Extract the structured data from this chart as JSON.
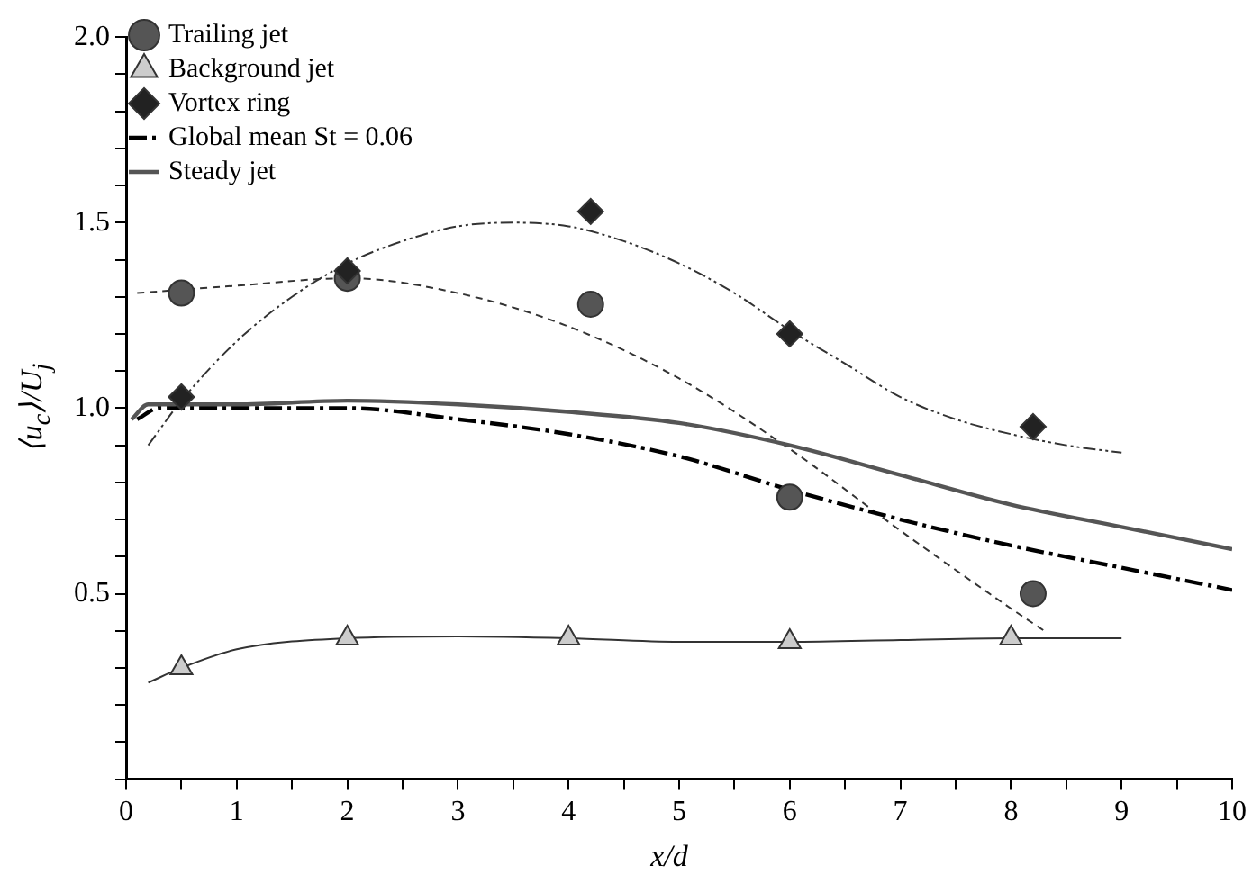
{
  "chart_data": {
    "type": "scatter",
    "xlabel": "x/d",
    "ylabel": "⟨u$_{c}$⟩/U$_{j}$",
    "xlim": [
      0,
      10
    ],
    "xticks": [
      0,
      {
        "value": 0.5,
        "label": null
      },
      1,
      {
        "value": 1.5,
        "label": null
      },
      2,
      {
        "value": 2.5,
        "label": null
      },
      3,
      {
        "value": 3.5,
        "label": null
      },
      4,
      {
        "value": 4.5,
        "label": null
      },
      5,
      {
        "value": 5.5,
        "label": null
      },
      6,
      {
        "value": 6.5,
        "label": null
      },
      7,
      {
        "value": 7.5,
        "label": null
      },
      8,
      {
        "value": 8.5,
        "label": null
      },
      9,
      {
        "value": 9.5,
        "label": null
      },
      10
    ],
    "ylim": [
      0,
      2
    ],
    "yticks": [
      {
        "value": 0,
        "label": null
      },
      {
        "value": 0.1,
        "label": null
      },
      {
        "value": 0.2,
        "label": null
      },
      {
        "value": 0.3,
        "label": null
      },
      {
        "value": 0.4,
        "label": null
      },
      0.5,
      {
        "value": 0.6,
        "label": null
      },
      {
        "value": 0.7,
        "label": null
      },
      {
        "value": 0.8,
        "label": null
      },
      {
        "value": 0.9,
        "label": null
      },
      {
        "value": 1,
        "label": "1.0"
      },
      {
        "value": 1.1,
        "label": null
      },
      {
        "value": 1.2,
        "label": null
      },
      {
        "value": 1.3,
        "label": null
      },
      {
        "value": 1.4,
        "label": null
      },
      1.5,
      {
        "value": 1.6,
        "label": null
      },
      {
        "value": 1.7,
        "label": null
      },
      {
        "value": 1.8,
        "label": null
      },
      {
        "value": 1.9,
        "label": null
      },
      {
        "value": 2,
        "label": "2.0"
      }
    ],
    "grid": false,
    "legend": "top left",
    "series": [
      {
        "type": "scatter",
        "name": "Trailing jet",
        "color": "#555555",
        "marker": "circle",
        "x": [
          0.5,
          2,
          4.2,
          6,
          8.2
        ],
        "values": [
          1.31,
          1.35,
          1.28,
          0.76,
          0.5
        ]
      },
      {
        "type": "scatter",
        "name": "Background jet",
        "color": "#cccccc",
        "marker": "triangle",
        "x": [
          0.5,
          2,
          4,
          6,
          8
        ],
        "values": [
          0.3,
          0.38,
          0.38,
          0.37,
          0.38
        ]
      },
      {
        "type": "scatter",
        "name": "Vortex ring",
        "color": "#222222",
        "marker": "diamond",
        "x": [
          0.5,
          2,
          4.2,
          6,
          8.2
        ],
        "values": [
          1.03,
          1.37,
          1.53,
          1.2,
          0.95
        ]
      },
      {
        "type": "line",
        "name": "Global mean St = 0.06",
        "color": "#000000",
        "line_style": "dashed",
        "marker": "none",
        "x": [
          0.1,
          0.3,
          1,
          2,
          3,
          4,
          5,
          6,
          7,
          8,
          9,
          10
        ],
        "values": [
          0.97,
          1.0,
          1.0,
          1.0,
          0.97,
          0.93,
          0.87,
          0.78,
          0.7,
          0.63,
          0.57,
          0.51
        ]
      },
      {
        "type": "line",
        "name": "Steady jet",
        "color": "#555555",
        "line_style": "solid",
        "marker": "none",
        "x": [
          0.05,
          0.2,
          1,
          2,
          3,
          4,
          5,
          6,
          7,
          8,
          9,
          10
        ],
        "values": [
          0.97,
          1.01,
          1.01,
          1.02,
          1.01,
          0.99,
          0.96,
          0.9,
          0.82,
          0.74,
          0.68,
          0.62
        ]
      },
      {
        "type": "line",
        "color": "#333333",
        "line_style": "dashed",
        "marker": "none",
        "x": [
          0.1,
          1,
          2,
          3,
          4,
          5,
          6,
          7,
          8,
          8.3
        ],
        "values": [
          1.31,
          1.33,
          1.35,
          1.31,
          1.22,
          1.08,
          0.89,
          0.67,
          0.46,
          0.4
        ]
      },
      {
        "type": "line",
        "color": "#333333",
        "line_style": "solid",
        "marker": "none",
        "x": [
          0.2,
          0.5,
          1,
          2,
          3,
          4,
          5,
          6,
          7,
          8,
          9
        ],
        "values": [
          0.26,
          0.3,
          0.35,
          0.38,
          0.385,
          0.38,
          0.37,
          0.37,
          0.375,
          0.38,
          0.38
        ]
      },
      {
        "type": "line",
        "color": "#333333",
        "line_style": "dotted",
        "marker": "none",
        "x": [
          0.2,
          0.5,
          1,
          1.5,
          2,
          2.5,
          3,
          3.5,
          4,
          4.5,
          5,
          5.5,
          6,
          6.5,
          7,
          7.5,
          8,
          8.5,
          9
        ],
        "values": [
          0.9,
          1.02,
          1.18,
          1.3,
          1.39,
          1.45,
          1.49,
          1.5,
          1.49,
          1.45,
          1.39,
          1.31,
          1.21,
          1.12,
          1.03,
          0.97,
          0.93,
          0.9,
          0.88
        ]
      }
    ]
  }
}
